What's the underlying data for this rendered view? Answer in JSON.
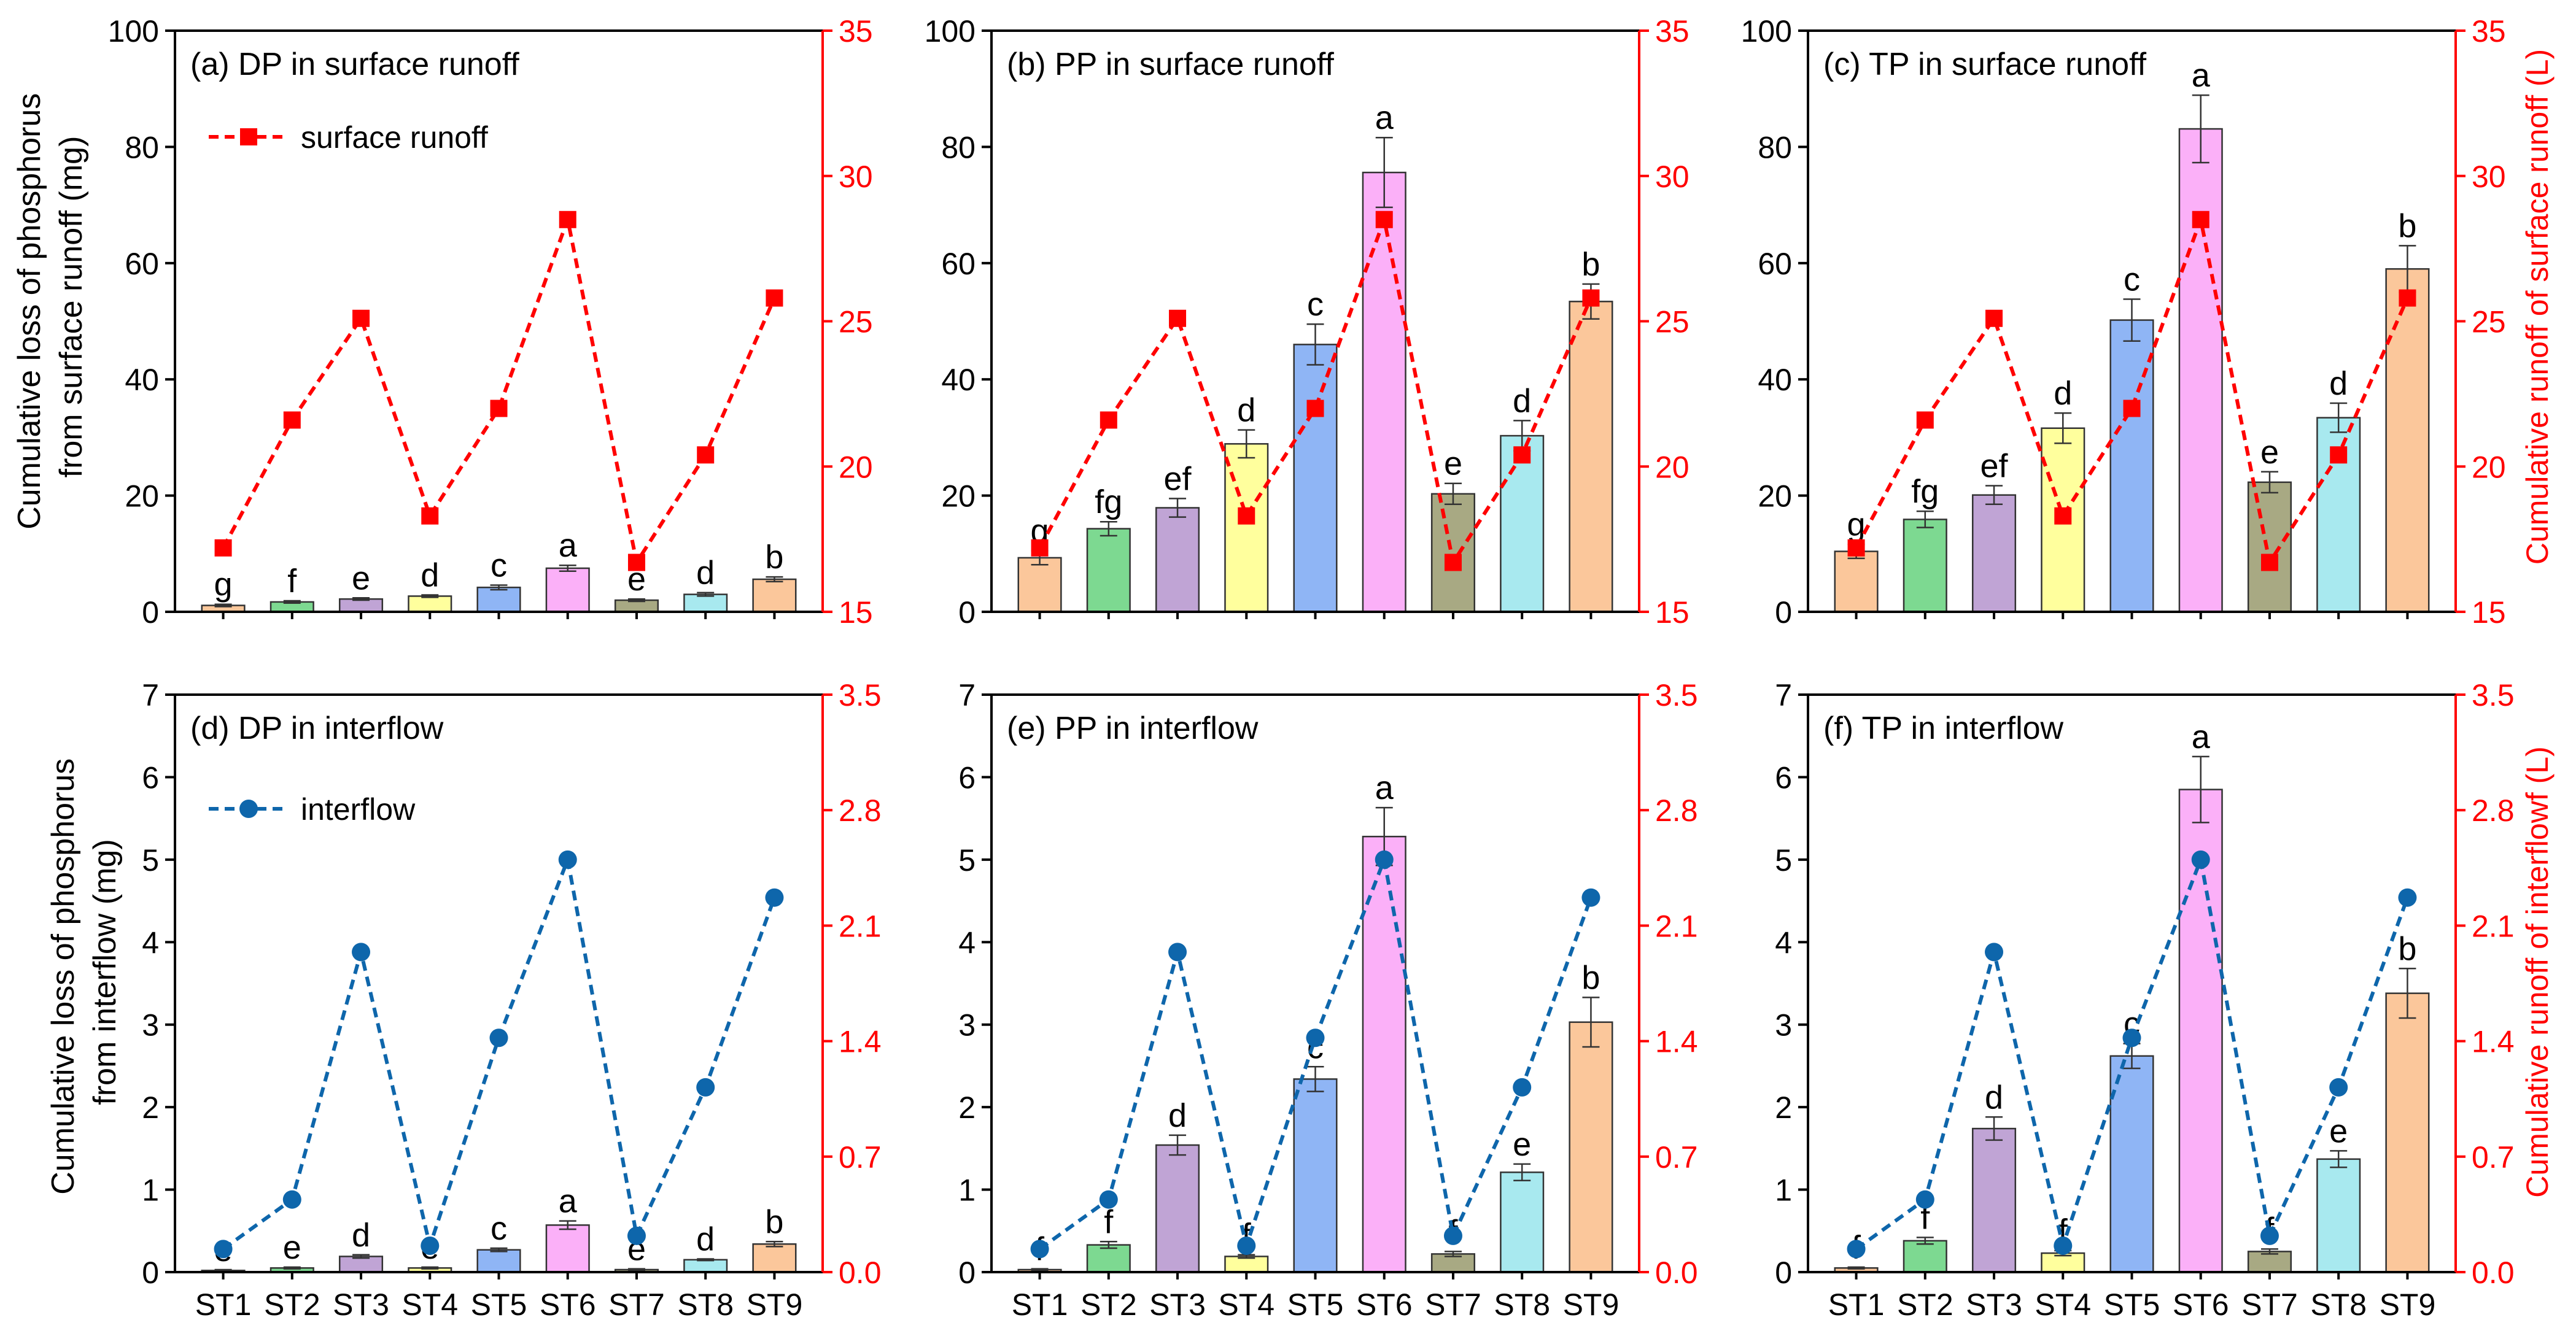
{
  "figure": {
    "left_axis_title_top": [
      "Cumulative loss of phosphorus",
      "from surface runoff (mg)"
    ],
    "left_axis_title_bottom": [
      "Cumulative loss of phosphorus",
      "from interflow (mg)"
    ],
    "right_axis_title_top": "Cumulative runoff of surface runoff (L)",
    "right_axis_title_bottom": "Cumulative runoff of interflowf (L)"
  },
  "colors": {
    "bars": [
      "#fbc79b",
      "#7dd991",
      "#c0a4d5",
      "#ffff9d",
      "#8fb5f5",
      "#fbb0f8",
      "#a8a983",
      "#a8e9ef",
      "#fbc79b"
    ],
    "surface_line": "#ff0000",
    "interflow_line": "#0e66ab",
    "right_axis": "#ff0000"
  },
  "chart_data": [
    {
      "type": "bar",
      "id": "a",
      "title": "(a) DP in surface runoff",
      "categories": [
        "ST1",
        "ST2",
        "ST3",
        "ST4",
        "ST5",
        "ST6",
        "ST7",
        "ST8",
        "ST9"
      ],
      "values": [
        1.1,
        1.7,
        2.2,
        2.7,
        4.2,
        7.5,
        2.0,
        3.0,
        5.6
      ],
      "errors": [
        0.2,
        0.2,
        0.2,
        0.2,
        0.4,
        0.5,
        0.2,
        0.3,
        0.4
      ],
      "letters": [
        "g",
        "f",
        "e",
        "d",
        "c",
        "a",
        "e",
        "d",
        "b"
      ],
      "ylim": [
        0,
        100
      ],
      "yticks": [
        0,
        20,
        40,
        60,
        80,
        100
      ],
      "y2lim": [
        15,
        35
      ],
      "y2ticks": [
        15,
        20,
        25,
        30,
        35
      ],
      "line": {
        "name": "surface runoff",
        "values": [
          17.2,
          21.6,
          25.1,
          18.3,
          22.0,
          28.5,
          16.7,
          20.4,
          25.8
        ]
      },
      "legend": "surface runoff"
    },
    {
      "type": "bar",
      "id": "b",
      "title": "(b) PP in surface runoff",
      "categories": [
        "ST1",
        "ST2",
        "ST3",
        "ST4",
        "ST5",
        "ST6",
        "ST7",
        "ST8",
        "ST9"
      ],
      "values": [
        9.3,
        14.3,
        17.9,
        28.9,
        46.0,
        75.6,
        20.3,
        30.3,
        53.4
      ],
      "errors": [
        1.2,
        1.2,
        1.6,
        2.4,
        3.5,
        6.0,
        1.8,
        2.6,
        3.0
      ],
      "letters": [
        "g",
        "fg",
        "ef",
        "d",
        "c",
        "a",
        "e",
        "d",
        "b"
      ],
      "ylim": [
        0,
        100
      ],
      "yticks": [
        0,
        20,
        40,
        60,
        80,
        100
      ],
      "y2lim": [
        15,
        35
      ],
      "y2ticks": [
        15,
        20,
        25,
        30,
        35
      ],
      "line": {
        "name": "surface runoff",
        "values": [
          17.2,
          21.6,
          25.1,
          18.3,
          22.0,
          28.5,
          16.7,
          20.4,
          25.8
        ]
      }
    },
    {
      "type": "bar",
      "id": "c",
      "title": "(c) TP in surface runoff",
      "categories": [
        "ST1",
        "ST2",
        "ST3",
        "ST4",
        "ST5",
        "ST6",
        "ST7",
        "ST8",
        "ST9"
      ],
      "values": [
        10.4,
        15.9,
        20.1,
        31.6,
        50.2,
        83.1,
        22.3,
        33.4,
        59.0
      ],
      "errors": [
        1.2,
        1.4,
        1.6,
        2.6,
        3.6,
        5.8,
        1.8,
        2.5,
        4.0
      ],
      "letters": [
        "g",
        "fg",
        "ef",
        "d",
        "c",
        "a",
        "e",
        "d",
        "b"
      ],
      "ylim": [
        0,
        100
      ],
      "yticks": [
        0,
        20,
        40,
        60,
        80,
        100
      ],
      "y2lim": [
        15,
        35
      ],
      "y2ticks": [
        15,
        20,
        25,
        30,
        35
      ],
      "line": {
        "name": "surface runoff",
        "values": [
          17.2,
          21.6,
          25.1,
          18.3,
          22.0,
          28.5,
          16.7,
          20.4,
          25.8
        ]
      }
    },
    {
      "type": "bar",
      "id": "d",
      "title": "(d) DP in interflow",
      "categories": [
        "ST1",
        "ST2",
        "ST3",
        "ST4",
        "ST5",
        "ST6",
        "ST7",
        "ST8",
        "ST9"
      ],
      "values": [
        0.02,
        0.05,
        0.19,
        0.05,
        0.27,
        0.57,
        0.03,
        0.15,
        0.34
      ],
      "errors": [
        0.01,
        0.01,
        0.02,
        0.01,
        0.02,
        0.05,
        0.01,
        0.01,
        0.03
      ],
      "letters": [
        "e",
        "e",
        "d",
        "e",
        "c",
        "a",
        "e",
        "d",
        "b"
      ],
      "ylim": [
        0,
        7
      ],
      "yticks": [
        0,
        1,
        2,
        3,
        4,
        5,
        6,
        7
      ],
      "y2lim": [
        0,
        3.5
      ],
      "y2ticks": [
        "0.0",
        "0.7",
        "1.4",
        "2.1",
        "2.8",
        "3.5"
      ],
      "line": {
        "name": "interflow",
        "values": [
          0.14,
          0.44,
          1.94,
          0.16,
          1.42,
          2.5,
          0.22,
          1.12,
          2.27
        ]
      },
      "legend": "interflow"
    },
    {
      "type": "bar",
      "id": "e",
      "title": "(e) PP in interflow",
      "categories": [
        "ST1",
        "ST2",
        "ST3",
        "ST4",
        "ST5",
        "ST6",
        "ST7",
        "ST8",
        "ST9"
      ],
      "values": [
        0.03,
        0.33,
        1.54,
        0.19,
        2.34,
        5.28,
        0.22,
        1.21,
        3.03
      ],
      "errors": [
        0.01,
        0.04,
        0.12,
        0.02,
        0.15,
        0.35,
        0.03,
        0.1,
        0.3
      ],
      "letters": [
        "f",
        "f",
        "d",
        "f",
        "c",
        "a",
        "f",
        "e",
        "b"
      ],
      "ylim": [
        0,
        7
      ],
      "yticks": [
        0,
        1,
        2,
        3,
        4,
        5,
        6,
        7
      ],
      "y2lim": [
        0,
        3.5
      ],
      "y2ticks": [
        "0.0",
        "0.7",
        "1.4",
        "2.1",
        "2.8",
        "3.5"
      ],
      "line": {
        "name": "interflow",
        "values": [
          0.14,
          0.44,
          1.94,
          0.16,
          1.42,
          2.5,
          0.22,
          1.12,
          2.27
        ]
      }
    },
    {
      "type": "bar",
      "id": "f",
      "title": "(f) TP in interflow",
      "categories": [
        "ST1",
        "ST2",
        "ST3",
        "ST4",
        "ST5",
        "ST6",
        "ST7",
        "ST8",
        "ST9"
      ],
      "values": [
        0.05,
        0.38,
        1.74,
        0.23,
        2.62,
        5.85,
        0.25,
        1.37,
        3.38
      ],
      "errors": [
        0.01,
        0.04,
        0.14,
        0.03,
        0.15,
        0.4,
        0.03,
        0.1,
        0.3
      ],
      "letters": [
        "f",
        "f",
        "d",
        "f",
        "c",
        "a",
        "f",
        "e",
        "b"
      ],
      "ylim": [
        0,
        7
      ],
      "yticks": [
        0,
        1,
        2,
        3,
        4,
        5,
        6,
        7
      ],
      "y2lim": [
        0,
        3.5
      ],
      "y2ticks": [
        "0.0",
        "0.7",
        "1.4",
        "2.1",
        "2.8",
        "3.5"
      ],
      "line": {
        "name": "interflow",
        "values": [
          0.14,
          0.44,
          1.94,
          0.16,
          1.42,
          2.5,
          0.22,
          1.12,
          2.27
        ]
      }
    }
  ]
}
